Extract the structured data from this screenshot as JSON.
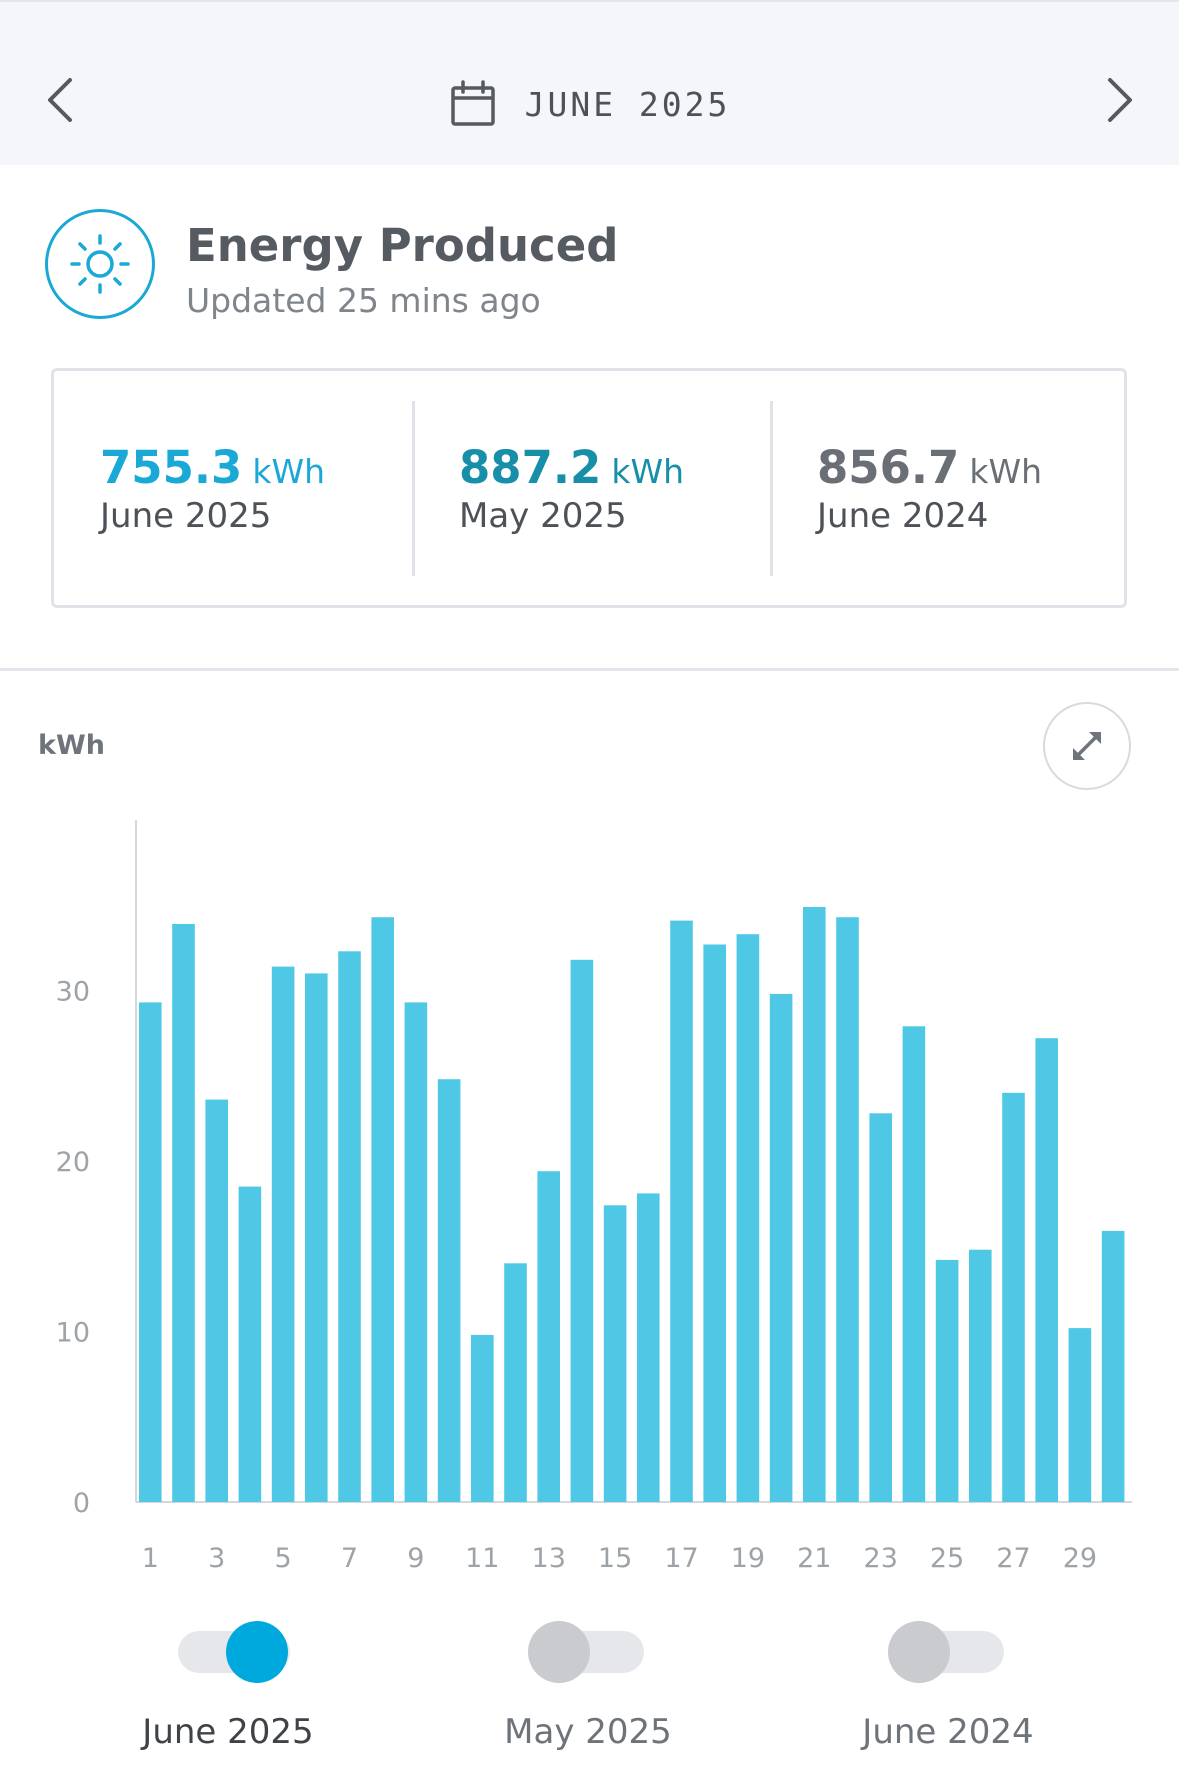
{
  "nav": {
    "month": "JUNE 2025",
    "prev_icon": "chevron-left-icon",
    "next_icon": "chevron-right-icon",
    "calendar_icon": "calendar-icon"
  },
  "header": {
    "icon": "sun-icon",
    "title": "Energy Produced",
    "subtitle": "Updated 25 mins ago"
  },
  "summary": [
    {
      "value": "755.3",
      "unit": "kWh",
      "label": "June 2025",
      "color": "#1aa8d6"
    },
    {
      "value": "887.2",
      "unit": "kWh",
      "label": "May 2025",
      "color": "#178fa8"
    },
    {
      "value": "856.7",
      "unit": "kWh",
      "label": "June 2024",
      "color": "#6a6f75"
    }
  ],
  "chart_unit_label": "kWh",
  "expand_icon": "expand-icon",
  "chart_data": {
    "type": "bar",
    "categories": [
      "1",
      "2",
      "3",
      "4",
      "5",
      "6",
      "7",
      "8",
      "9",
      "10",
      "11",
      "12",
      "13",
      "14",
      "15",
      "16",
      "17",
      "18",
      "19",
      "20",
      "21",
      "22",
      "23",
      "24",
      "25",
      "26",
      "27",
      "28",
      "29",
      "30"
    ],
    "x_tick_labels": [
      "1",
      "3",
      "5",
      "7",
      "9",
      "11",
      "13",
      "15",
      "17",
      "19",
      "21",
      "23",
      "25",
      "27",
      "29"
    ],
    "y_tick_labels": [
      "0",
      "10",
      "20",
      "30"
    ],
    "ylabel": "kWh",
    "ylim": [
      0,
      40
    ],
    "bar_color": "#4fc8e6",
    "series": [
      {
        "name": "June 2025",
        "values": [
          29.3,
          33.9,
          23.6,
          18.5,
          31.4,
          31.0,
          32.3,
          34.3,
          29.3,
          24.8,
          9.8,
          14.0,
          19.4,
          31.8,
          17.4,
          18.1,
          34.1,
          32.7,
          33.3,
          29.8,
          34.9,
          34.3,
          22.8,
          27.9,
          14.2,
          14.8,
          24.0,
          27.2,
          10.2,
          15.9
        ]
      }
    ],
    "grid": false
  },
  "legend": [
    {
      "label": "June 2025",
      "on": true
    },
    {
      "label": "May 2025",
      "on": false
    },
    {
      "label": "June 2024",
      "on": false
    }
  ]
}
